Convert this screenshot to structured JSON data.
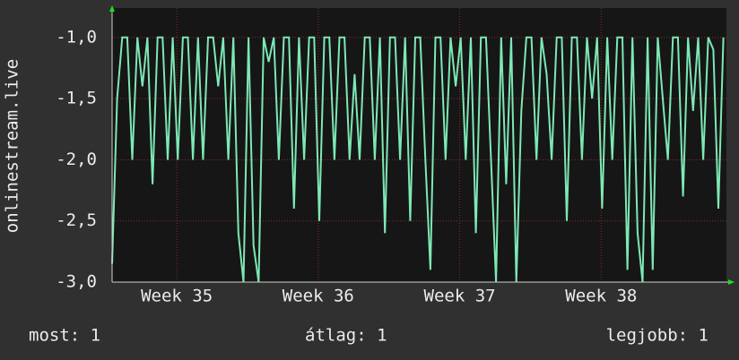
{
  "chart_data": {
    "type": "line",
    "ylabel": "onlinestream.live",
    "x": [
      0,
      0.25,
      0.5,
      0.75,
      1,
      1.25,
      1.5,
      1.75,
      2,
      2.25,
      2.5,
      2.75,
      3,
      3.25,
      3.5,
      3.75,
      4,
      4.25,
      4.5,
      4.75,
      5,
      5.25,
      5.5,
      5.75,
      6,
      6.25,
      6.5,
      6.75,
      7,
      7.25,
      7.5,
      7.75,
      8,
      8.25,
      8.5,
      8.75,
      9,
      9.25,
      9.5,
      9.75,
      10,
      10.25,
      10.5,
      10.75,
      11,
      11.25,
      11.5,
      11.75,
      12,
      12.25,
      12.5,
      12.75,
      13,
      13.25,
      13.5,
      13.75,
      14,
      14.25,
      14.5,
      14.75,
      15,
      15.25,
      15.5,
      15.75,
      16,
      16.25,
      16.5,
      16.75,
      17,
      17.25,
      17.5,
      17.75,
      18,
      18.25,
      18.5,
      18.75,
      19,
      19.25,
      19.5,
      19.75,
      20,
      20.25,
      20.5,
      20.75,
      21,
      21.25,
      21.5,
      21.75,
      22,
      22.25,
      22.5,
      22.75,
      23,
      23.25,
      23.5,
      23.75,
      24,
      24.25,
      24.5,
      24.75,
      25,
      25.25,
      25.5,
      25.75,
      26,
      26.25,
      26.5,
      26.75,
      27,
      27.25,
      27.5,
      27.75,
      28,
      28.25,
      28.5,
      28.75,
      29,
      29.25,
      29.5,
      29.75,
      30,
      30.25
    ],
    "series": [
      {
        "color": "#7de8b4",
        "values": [
          -2.85,
          -1.5,
          -1,
          -1,
          -2,
          -1,
          -1.4,
          -1,
          -2.2,
          -1,
          -1,
          -2,
          -1,
          -2,
          -1,
          -1,
          -2,
          -1,
          -2,
          -1,
          -1,
          -1.4,
          -1,
          -2,
          -1,
          -2.6,
          -3,
          -1,
          -2.7,
          -3,
          -1,
          -1.2,
          -1,
          -2,
          -1,
          -1,
          -2.4,
          -1,
          -2,
          -1,
          -1,
          -2.5,
          -1,
          -1,
          -2,
          -1,
          -1,
          -2,
          -1.3,
          -2,
          -1,
          -1,
          -2,
          -1,
          -2.6,
          -1,
          -1,
          -2,
          -1,
          -2.5,
          -1,
          -1,
          -2,
          -2.9,
          -1,
          -1,
          -2,
          -1,
          -1.4,
          -1,
          -2,
          -1,
          -2.6,
          -1,
          -1,
          -2,
          -3,
          -1,
          -2.2,
          -1,
          -3,
          -1.6,
          -1,
          -1,
          -2,
          -1,
          -1.3,
          -2,
          -1,
          -1,
          -2.5,
          -1,
          -1,
          -2,
          -1,
          -1.5,
          -1,
          -2.4,
          -1,
          -2,
          -1,
          -1,
          -2.9,
          -1,
          -2.6,
          -3,
          -1,
          -2.9,
          -1,
          -1.5,
          -2,
          -1,
          -1,
          -2.3,
          -1,
          -1.6,
          -1,
          -2,
          -1,
          -1.1,
          -2.4,
          -1
        ]
      }
    ],
    "xlim": [
      0,
      30.4
    ],
    "xticks": [
      {
        "value": 3.2,
        "label": "Week 35"
      },
      {
        "value": 10.2,
        "label": "Week 36"
      },
      {
        "value": 17.2,
        "label": "Week 37"
      },
      {
        "value": 24.2,
        "label": "Week 38"
      }
    ],
    "ylim": [
      -3,
      -0.76
    ],
    "yticks": [
      {
        "value": -3,
        "label": "-3,0"
      },
      {
        "value": -2.5,
        "label": "-2,5"
      },
      {
        "value": -2,
        "label": "-2,0"
      },
      {
        "value": -1.5,
        "label": "-1,5"
      },
      {
        "value": -1,
        "label": "-1,0"
      }
    ],
    "grid": true,
    "footer": [
      "most: 1",
      "átlag: 1",
      "legjobb: 1"
    ]
  }
}
